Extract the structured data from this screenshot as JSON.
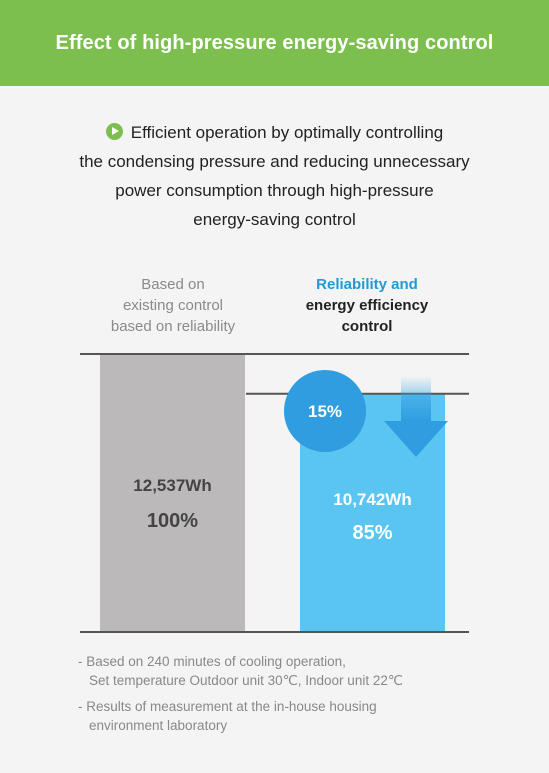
{
  "header": {
    "title": "Effect of high-pressure energy-saving control"
  },
  "intro": {
    "icon": "play-circle-icon",
    "text": "Efficient operation by optimally controlling\nthe condensing pressure and reducing unnecessary\npower consumption through high-pressure\nenergy-saving control"
  },
  "labels": {
    "left": "Based on\nexisting control\nbased on reliability",
    "right_accent": "Reliability and",
    "right_rest": "energy efficiency\ncontrol"
  },
  "chart_data": {
    "type": "bar",
    "categories": [
      "Based on existing control based on reliability",
      "Reliability and energy efficiency control"
    ],
    "series": [
      {
        "values": [
          12537,
          10742
        ]
      }
    ],
    "value_labels": [
      "12,537Wh",
      "10,742Wh"
    ],
    "percent_labels": [
      "100%",
      "85%"
    ],
    "reduction_label": "15%",
    "colors": {
      "bar_existing": "#bbb9ba",
      "bar_efficient": "#5bc5f2",
      "circle": "#2f9de0",
      "arrow": "#2f9de0",
      "lines": "#555555"
    }
  },
  "notes": [
    "- Based on 240 minutes of cooling operation,\nSet temperature Outdoor unit 30℃, Indoor unit 22℃",
    "- Results of measurement at the in-house housing\nenvironment laboratory"
  ]
}
